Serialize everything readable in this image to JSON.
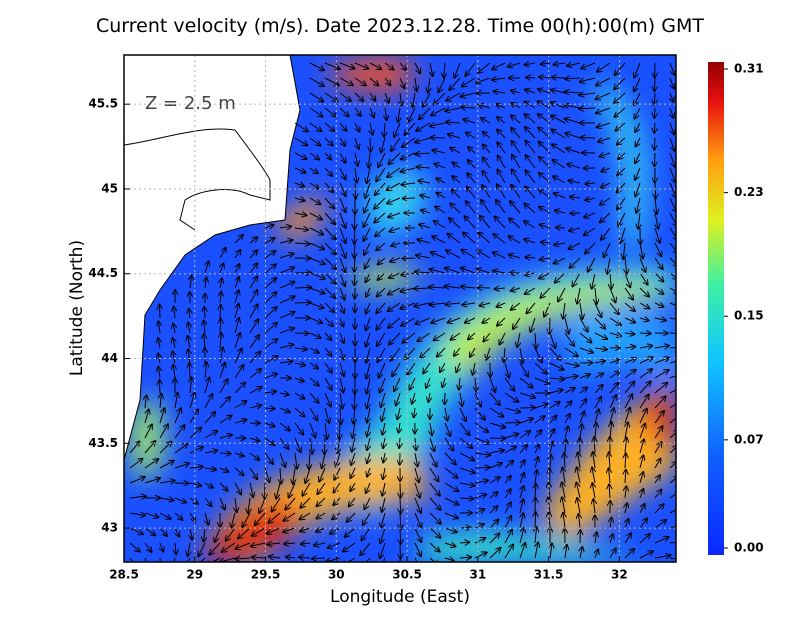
{
  "title": "Current velocity (m/s). Date 2023.12.28. Time 00(h):00(m) GMT",
  "annotation": "Z = 2.5 m",
  "xlabel": "Longitude (East)",
  "ylabel": "Latitude (North)",
  "xlim": [
    28.5,
    32.4
  ],
  "ylim": [
    42.8,
    45.79
  ],
  "xticks": [
    28.5,
    29,
    29.5,
    30,
    30.5,
    31,
    31.5,
    32
  ],
  "yticks": [
    43,
    43.5,
    44,
    44.5,
    45,
    45.5
  ],
  "grid": true,
  "colorbar": {
    "clim": [
      0,
      0.31
    ],
    "ticks": [
      {
        "value": 0,
        "label": "0.00"
      },
      0.07,
      0.15,
      0.23,
      0.31
    ]
  }
}
